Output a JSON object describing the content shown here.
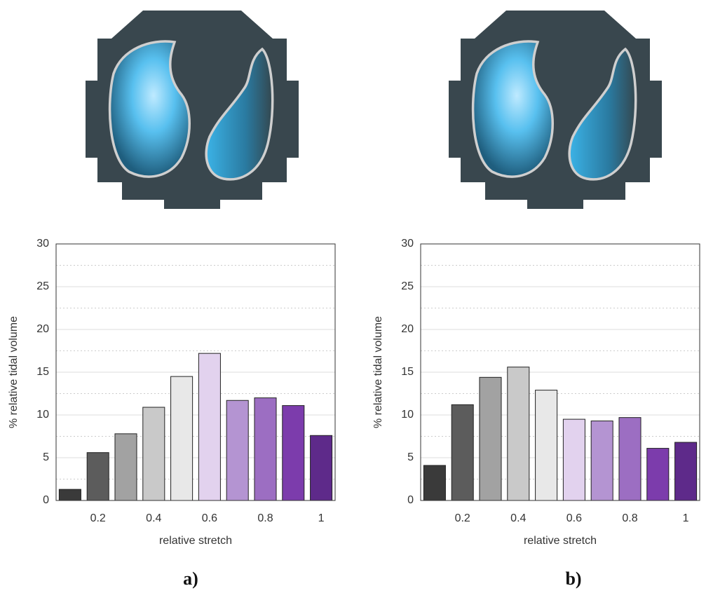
{
  "chart_data": [
    {
      "type": "bar",
      "label": "a)",
      "xlabel": "relative stretch",
      "ylabel": "% relative tidal volume",
      "x": [
        0.1,
        0.2,
        0.3,
        0.4,
        0.5,
        0.6,
        0.7,
        0.8,
        0.9,
        1
      ],
      "values": [
        1.3,
        5.6,
        7.8,
        10.9,
        14.5,
        17.2,
        11.7,
        12.0,
        11.1,
        7.6
      ],
      "colors": [
        "#3a3a3a",
        "#5c5c5c",
        "#a2a2a2",
        "#c9c9c9",
        "#e8e8e8",
        "#e2d2ee",
        "#b494d2",
        "#9c6ec2",
        "#7c3cac",
        "#5e2a8a"
      ],
      "xlim": [
        0.05,
        1.05
      ],
      "xticks": [
        0.2,
        0.4,
        0.6,
        0.8,
        1
      ],
      "ylim": [
        0,
        30
      ],
      "yticks": [
        0,
        5,
        10,
        15,
        20,
        25,
        30
      ],
      "minor_yticks": [
        2.5,
        7.5,
        12.5,
        17.5,
        22.5,
        27.5
      ],
      "grid": true
    },
    {
      "type": "bar",
      "label": "b)",
      "xlabel": "relative stretch",
      "ylabel": "% relative tidal volume",
      "x": [
        0.1,
        0.2,
        0.3,
        0.4,
        0.5,
        0.6,
        0.7,
        0.8,
        0.9,
        1
      ],
      "values": [
        4.1,
        11.2,
        14.4,
        15.6,
        12.9,
        9.5,
        9.3,
        9.7,
        6.1,
        6.8
      ],
      "colors": [
        "#3a3a3a",
        "#5c5c5c",
        "#a2a2a2",
        "#c9c9c9",
        "#e8e8e8",
        "#e2d2ee",
        "#b494d2",
        "#9c6ec2",
        "#7c3cac",
        "#5e2a8a"
      ],
      "xlim": [
        0.05,
        1.05
      ],
      "xticks": [
        0.2,
        0.4,
        0.6,
        0.8,
        1
      ],
      "ylim": [
        0,
        30
      ],
      "yticks": [
        0,
        5,
        10,
        15,
        20,
        25,
        30
      ],
      "minor_yticks": [
        2.5,
        7.5,
        12.5,
        17.5,
        22.5,
        27.5
      ],
      "grid": true
    }
  ]
}
